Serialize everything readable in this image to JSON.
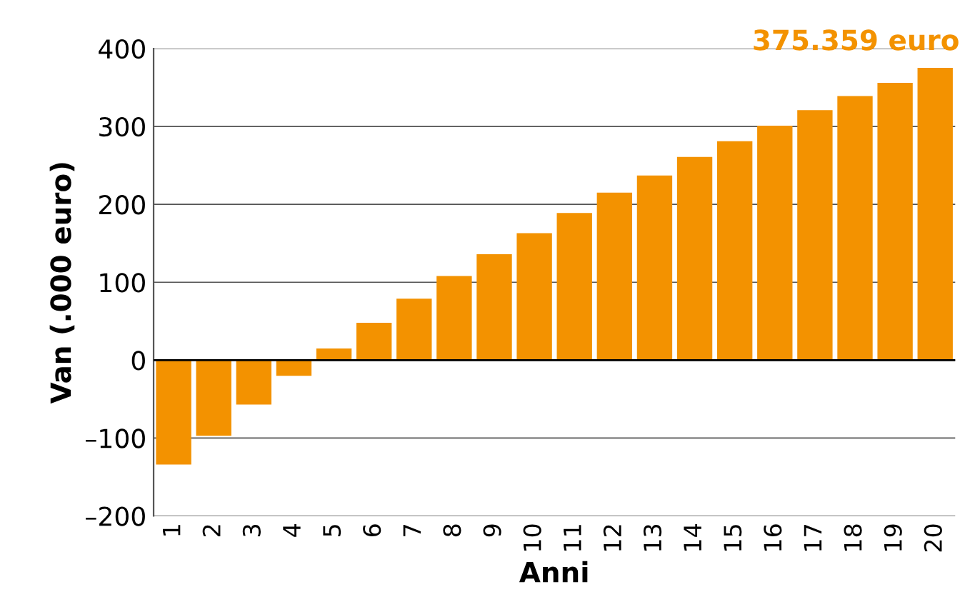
{
  "chart_data": {
    "type": "bar",
    "xlabel": "Anni",
    "ylabel": "Van (.000 euro)",
    "categories": [
      "1",
      "2",
      "3",
      "4",
      "5",
      "6",
      "7",
      "8",
      "9",
      "10",
      "11",
      "12",
      "13",
      "14",
      "15",
      "16",
      "17",
      "18",
      "19",
      "20"
    ],
    "values": [
      -134,
      -97,
      -57,
      -20,
      15,
      48,
      79,
      108,
      136,
      163,
      189,
      215,
      237,
      261,
      281,
      301,
      321,
      339,
      356,
      375.359
    ],
    "color": "#f39200",
    "ylim": [
      -200,
      400
    ],
    "yticks": [
      {
        "value": -200,
        "label": "–200"
      },
      {
        "value": -100,
        "label": "–100"
      },
      0,
      100,
      200,
      300,
      400
    ],
    "grid": "y",
    "annotations": [
      {
        "text": "375.359 euro",
        "x": "20",
        "y": 375.359
      }
    ]
  }
}
